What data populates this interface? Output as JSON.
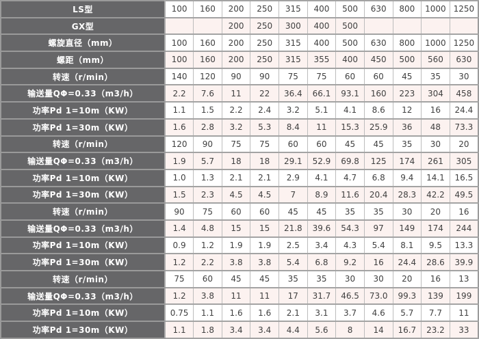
{
  "colors": {
    "label_bg": "#666668",
    "label_text": "#ffffff",
    "row_white_bg": "#ffffff",
    "row_pink_bg": "#fcf2f0",
    "grid_border": "#a3a3a3",
    "cell_text": "#404040"
  },
  "table": {
    "rows": [
      {
        "label": "LS型",
        "values": [
          "100",
          "160",
          "200",
          "250",
          "315",
          "400",
          "500",
          "630",
          "800",
          "1000",
          "1250"
        ]
      },
      {
        "label": "GX型",
        "values": [
          "",
          "",
          "200",
          "250",
          "300",
          "400",
          "500",
          "",
          "",
          "",
          ""
        ]
      },
      {
        "label": "螺旋直径（mm）",
        "values": [
          "100",
          "160",
          "200",
          "250",
          "315",
          "400",
          "500",
          "630",
          "800",
          "1000",
          "1250"
        ]
      },
      {
        "label": "螺距（mm）",
        "values": [
          "100",
          "160",
          "200",
          "250",
          "315",
          "355",
          "400",
          "450",
          "500",
          "560",
          "630"
        ]
      },
      {
        "label": "转速（r/min）",
        "values": [
          "140",
          "120",
          "90",
          "90",
          "75",
          "75",
          "60",
          "60",
          "45",
          "35",
          "30"
        ]
      },
      {
        "label": "输送量QΦ=0.33（m3/h）",
        "values": [
          "2.2",
          "7.6",
          "11",
          "22",
          "36.4",
          "66.1",
          "93.1",
          "160",
          "223",
          "304",
          "458"
        ]
      },
      {
        "label": "功率Pd 1=10m（KW）",
        "values": [
          "1.1",
          "1.5",
          "2.2",
          "2.4",
          "3.2",
          "5.1",
          "4.1",
          "8.6",
          "12",
          "16",
          "24.4"
        ]
      },
      {
        "label": "功率Pd 1=30m（KW）",
        "values": [
          "1.6",
          "2.8",
          "3.2",
          "5.3",
          "8.4",
          "11",
          "15.3",
          "25.9",
          "36",
          "48",
          "73.3"
        ]
      },
      {
        "label": "转速（r/min）",
        "values": [
          "120",
          "90",
          "75",
          "75",
          "60",
          "60",
          "45",
          "45",
          "35",
          "30",
          "20"
        ]
      },
      {
        "label": "输送量QΦ=0.33（m3/h）",
        "values": [
          "1.9",
          "5.7",
          "18",
          "18",
          "29.1",
          "52.9",
          "69.8",
          "125",
          "174",
          "261",
          "305"
        ]
      },
      {
        "label": "功率Pd 1=10m（KW）",
        "values": [
          "1.0",
          "1.3",
          "2.1",
          "2.1",
          "2.9",
          "4.1",
          "4.7",
          "6.8",
          "9.4",
          "14.1",
          "16.5"
        ]
      },
      {
        "label": "功率Pd 1=30m（KW）",
        "values": [
          "1.5",
          "2.3",
          "4.5",
          "4.5",
          "7",
          "8.9",
          "11.6",
          "20.4",
          "28.3",
          "42.2",
          "49.5"
        ]
      },
      {
        "label": "转速（r/min）",
        "values": [
          "90",
          "75",
          "60",
          "60",
          "45",
          "45",
          "35",
          "35",
          "30",
          "20",
          "16"
        ]
      },
      {
        "label": "输送量QΦ=0.33（m3/h）",
        "values": [
          "1.4",
          "4.8",
          "15",
          "15",
          "21.8",
          "39.6",
          "54.3",
          "97",
          "149",
          "174",
          "244"
        ]
      },
      {
        "label": "功率Pd 1=10m（KW）",
        "values": [
          "0.9",
          "1.2",
          "1.9",
          "1.9",
          "2.5",
          "3.4",
          "4.3",
          "5.4",
          "8.1",
          "9.5",
          "13.3"
        ]
      },
      {
        "label": "功率Pd 1=30m（KW）",
        "values": [
          "1.2",
          "2.2",
          "3.8",
          "3.8",
          "5.4",
          "6.8",
          "9.2",
          "16",
          "24.4",
          "28.6",
          "39.9"
        ]
      },
      {
        "label": "转速（r/min）",
        "values": [
          "75",
          "60",
          "45",
          "45",
          "35",
          "35",
          "30",
          "30",
          "20",
          "16",
          "13"
        ]
      },
      {
        "label": "输送量QΦ=0.33（m3/h）",
        "values": [
          "1.2",
          "3.8",
          "11",
          "11",
          "17",
          "31.7",
          "46.5",
          "73.0",
          "99.3",
          "139",
          "199"
        ]
      },
      {
        "label": "功率Pd 1=10m（KW）",
        "values": [
          "0.75",
          "1.1",
          "1.6",
          "1.6",
          "2.1",
          "3.1",
          "3.7",
          "4.6",
          "5.7",
          "7.7",
          "11"
        ]
      },
      {
        "label": "功率Pd 1=30m（KW）",
        "values": [
          "1.1",
          "1.8",
          "3.4",
          "3.4",
          "4.4",
          "5.6",
          "8",
          "14",
          "16.7",
          "23.2",
          "33"
        ]
      }
    ]
  }
}
